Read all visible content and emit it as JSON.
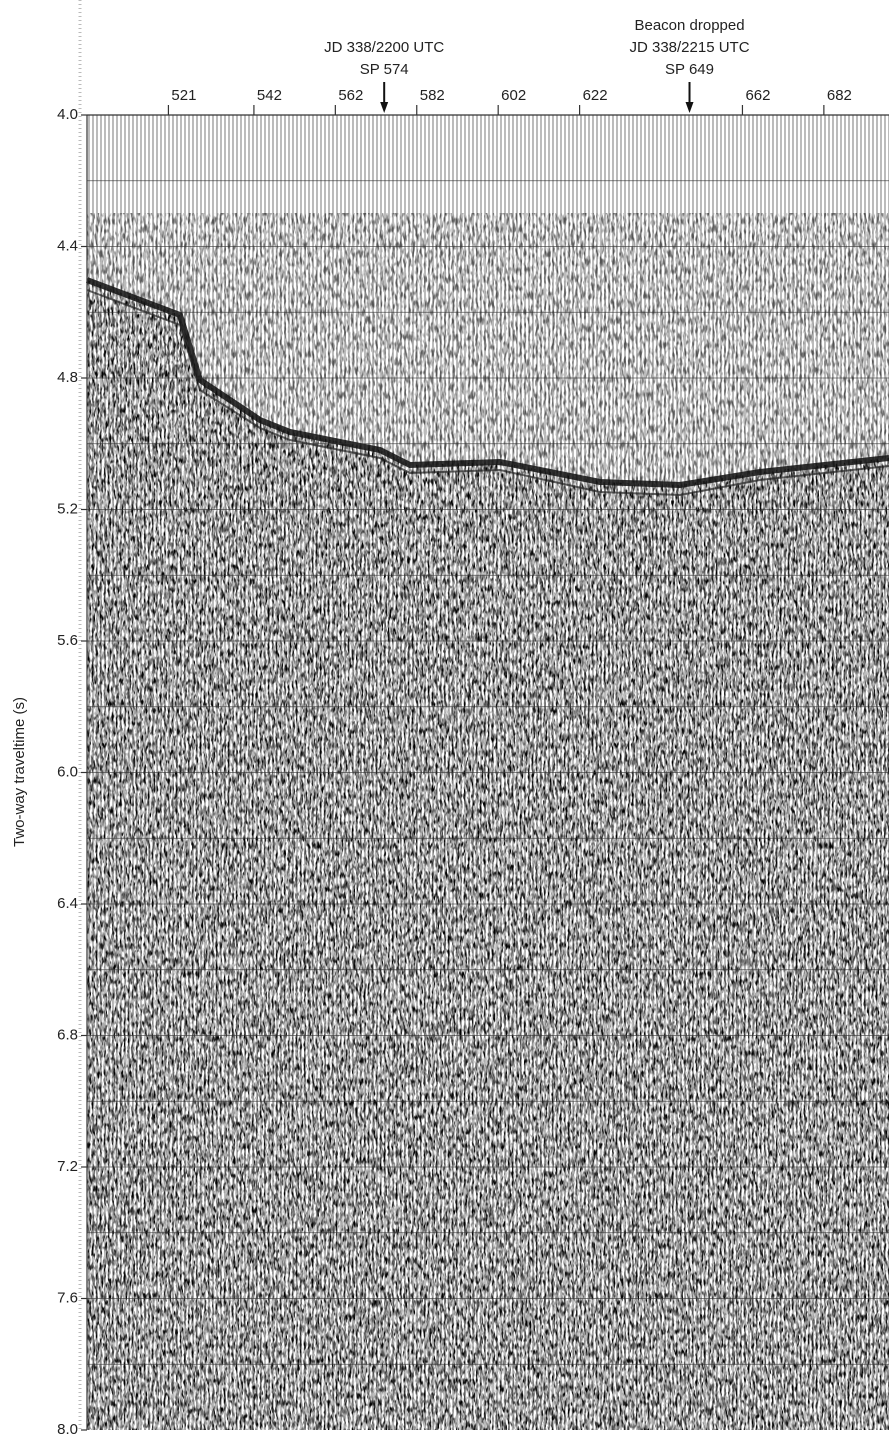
{
  "chart_data": {
    "type": "seismic",
    "ylabel": "Two-way traveltime (s)",
    "ylim": [
      8.0,
      4.0
    ],
    "yticks": [
      {
        "value": 4.0,
        "label": "4.0"
      },
      {
        "value": 4.4,
        "label": "4.4"
      },
      {
        "value": 4.8,
        "label": "4.8"
      },
      {
        "value": 5.2,
        "label": "5.2"
      },
      {
        "value": 5.6,
        "label": "5.6"
      },
      {
        "value": 6.0,
        "label": "6.0"
      },
      {
        "value": 6.4,
        "label": "6.4"
      },
      {
        "value": 6.8,
        "label": "6.8"
      },
      {
        "value": 7.2,
        "label": "7.2"
      },
      {
        "value": 7.6,
        "label": "7.6"
      },
      {
        "value": 8.0,
        "label": "8.0"
      }
    ],
    "ygrid": [
      4.2,
      4.4,
      4.6,
      4.8,
      5.0,
      5.2,
      5.4,
      5.6,
      5.8,
      6.0,
      6.2,
      6.4,
      6.6,
      6.8,
      7.0,
      7.2,
      7.4,
      7.6,
      7.8
    ],
    "xlim": [
      501,
      698
    ],
    "xticks": [
      521,
      542,
      562,
      582,
      602,
      622,
      662,
      682
    ],
    "grid": true,
    "annotations": [
      {
        "x": 574,
        "lines": [
          "JD 338/2200 UTC",
          "SP 574"
        ]
      },
      {
        "x": 649,
        "lines": [
          "Beacon dropped",
          "JD 338/2215 UTC",
          "SP 649"
        ]
      }
    ]
  }
}
